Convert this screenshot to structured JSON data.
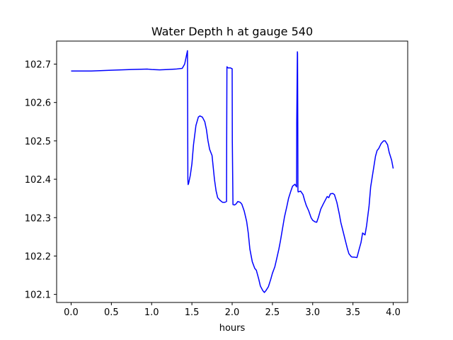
{
  "chart_data": {
    "type": "line",
    "title": "Water Depth h at gauge 540",
    "xlabel": "hours",
    "ylabel": "",
    "xlim": [
      -0.18,
      4.18
    ],
    "ylim": [
      102.079,
      102.76
    ],
    "x_ticks": [
      0.0,
      0.5,
      1.0,
      1.5,
      2.0,
      2.5,
      3.0,
      3.5,
      4.0
    ],
    "x_tick_labels": [
      "0.0",
      "0.5",
      "1.0",
      "1.5",
      "2.0",
      "2.5",
      "3.0",
      "3.5",
      "4.0"
    ],
    "y_ticks": [
      102.1,
      102.2,
      102.3,
      102.4,
      102.5,
      102.6,
      102.7
    ],
    "y_tick_labels": [
      "102.1",
      "102.2",
      "102.3",
      "102.4",
      "102.5",
      "102.6",
      "102.7"
    ],
    "grid": false,
    "series": [
      {
        "color": "#0000ff",
        "x": [
          0.0,
          0.25,
          0.5,
          0.75,
          0.95,
          1.0,
          1.1,
          1.2,
          1.3,
          1.38,
          1.41,
          1.43,
          1.445,
          1.45,
          1.453,
          1.46,
          1.48,
          1.5,
          1.52,
          1.55,
          1.58,
          1.6,
          1.63,
          1.66,
          1.68,
          1.7,
          1.72,
          1.75,
          1.78,
          1.8,
          1.82,
          1.85,
          1.88,
          1.91,
          1.93,
          1.932,
          1.935,
          1.95,
          1.98,
          2.0,
          2.002,
          2.01,
          2.03,
          2.05,
          2.07,
          2.1,
          2.12,
          2.15,
          2.18,
          2.2,
          2.22,
          2.25,
          2.28,
          2.3,
          2.33,
          2.35,
          2.38,
          2.4,
          2.42,
          2.45,
          2.48,
          2.5,
          2.53,
          2.55,
          2.58,
          2.6,
          2.62,
          2.65,
          2.68,
          2.7,
          2.73,
          2.75,
          2.78,
          2.8,
          2.802,
          2.81,
          2.812,
          2.815,
          2.817,
          2.82,
          2.85,
          2.88,
          2.9,
          2.92,
          2.95,
          2.98,
          3.0,
          3.03,
          3.05,
          3.07,
          3.1,
          3.13,
          3.15,
          3.18,
          3.2,
          3.22,
          3.25,
          3.27,
          3.3,
          3.33,
          3.35,
          3.38,
          3.4,
          3.43,
          3.45,
          3.48,
          3.5,
          3.52,
          3.55,
          3.58,
          3.6,
          3.62,
          3.65,
          3.67,
          3.7,
          3.72,
          3.75,
          3.78,
          3.8,
          3.82,
          3.85,
          3.88,
          3.9,
          3.93,
          3.95,
          3.98,
          4.0
        ],
        "y": [
          102.682,
          102.682,
          102.684,
          102.686,
          102.687,
          102.686,
          102.685,
          102.686,
          102.687,
          102.689,
          102.7,
          102.72,
          102.735,
          102.4,
          102.386,
          102.39,
          102.41,
          102.44,
          102.49,
          102.54,
          102.562,
          102.565,
          102.562,
          102.55,
          102.53,
          102.5,
          102.478,
          102.462,
          102.4,
          102.37,
          102.352,
          102.345,
          102.34,
          102.34,
          102.342,
          102.5,
          102.693,
          102.69,
          102.69,
          102.688,
          102.5,
          102.334,
          102.333,
          102.336,
          102.342,
          102.34,
          102.335,
          102.317,
          102.29,
          102.26,
          102.218,
          102.185,
          102.168,
          102.163,
          102.14,
          102.122,
          102.11,
          102.105,
          102.11,
          102.12,
          102.14,
          102.155,
          102.172,
          102.19,
          102.218,
          102.24,
          102.265,
          102.302,
          102.33,
          102.35,
          102.37,
          102.382,
          102.387,
          102.38,
          102.55,
          102.732,
          102.728,
          102.55,
          102.37,
          102.367,
          102.369,
          102.36,
          102.345,
          102.332,
          102.318,
          102.3,
          102.293,
          102.289,
          102.288,
          102.3,
          102.322,
          102.335,
          102.343,
          102.355,
          102.352,
          102.362,
          102.363,
          102.36,
          102.34,
          102.31,
          102.287,
          102.262,
          102.245,
          102.22,
          102.206,
          102.198,
          102.197,
          102.197,
          102.196,
          102.22,
          102.235,
          102.26,
          102.255,
          102.28,
          102.33,
          102.38,
          102.42,
          102.46,
          102.475,
          102.48,
          102.493,
          102.5,
          102.5,
          102.49,
          102.47,
          102.45,
          102.428
        ]
      }
    ]
  }
}
